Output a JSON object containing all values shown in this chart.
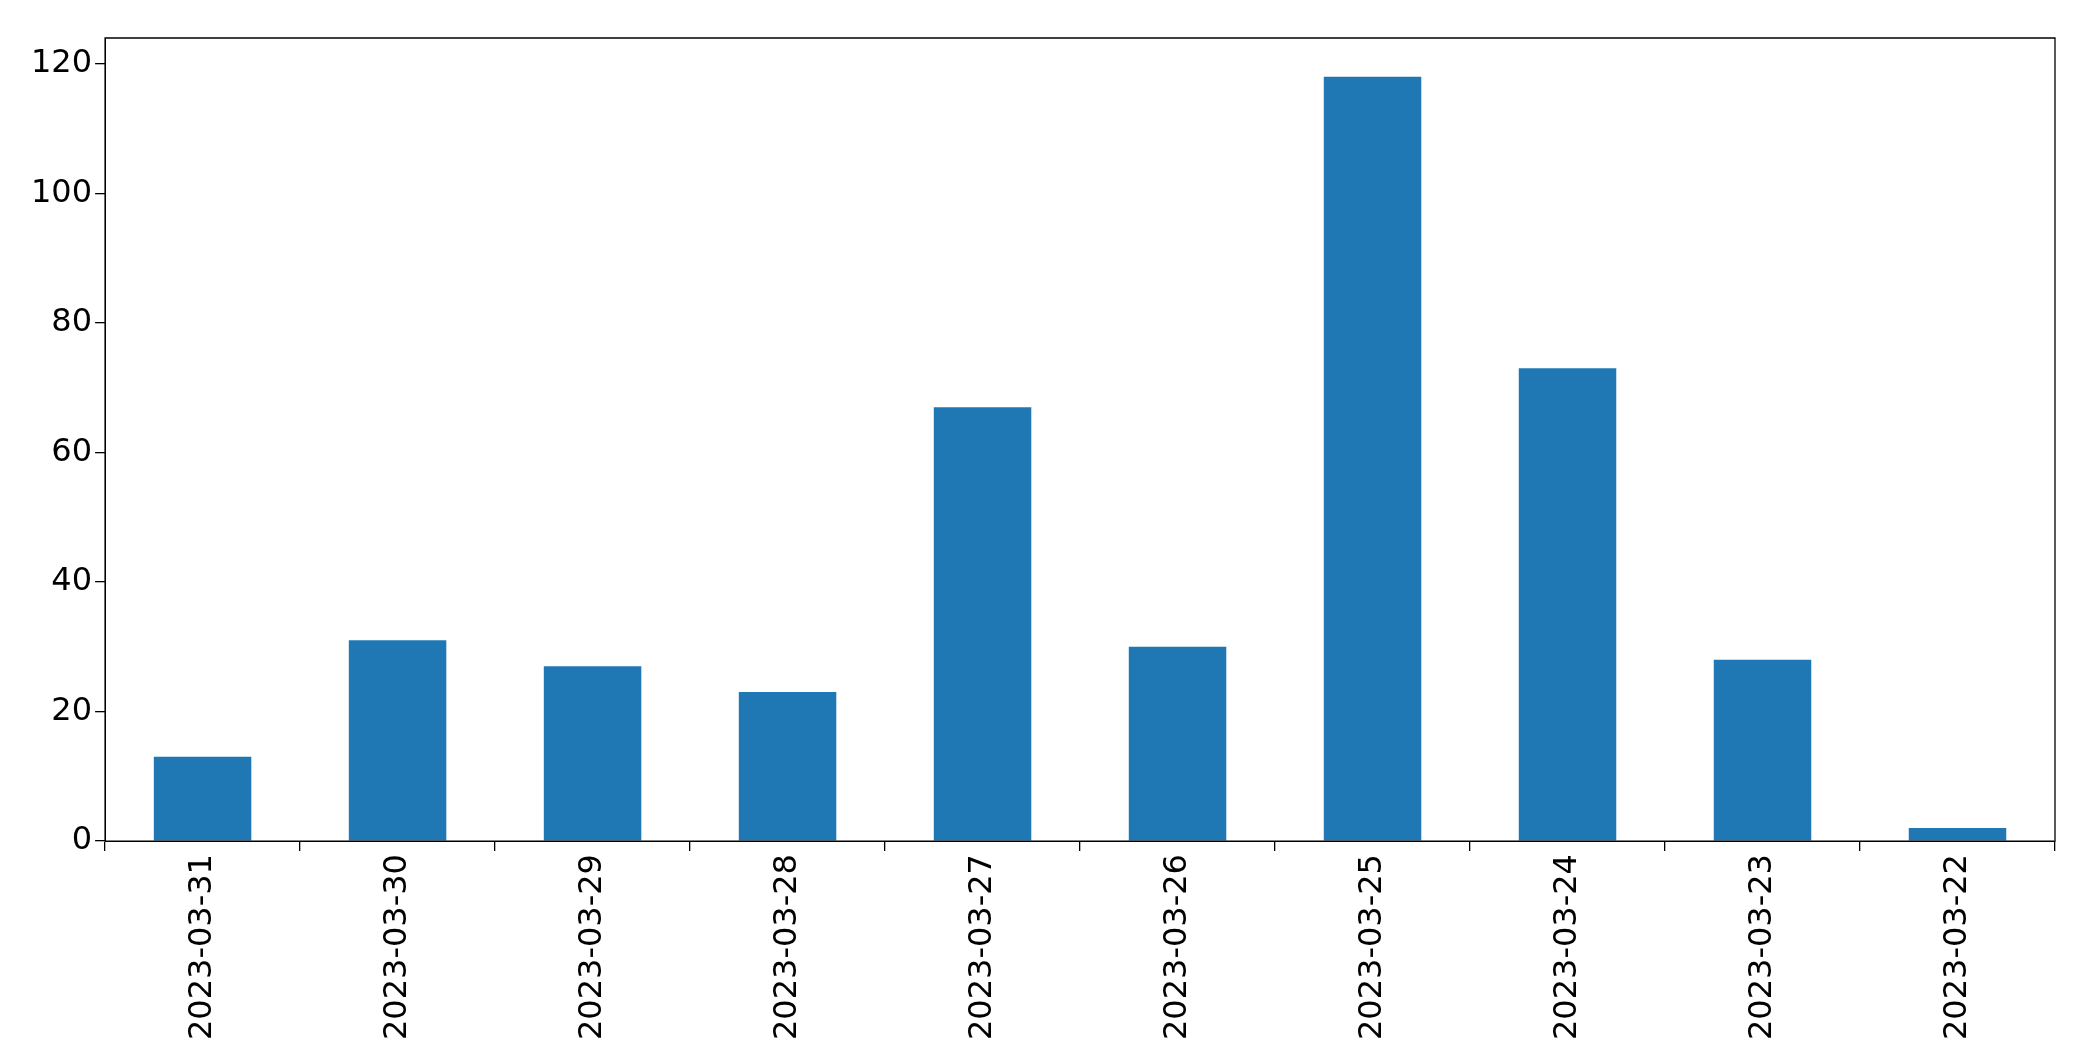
{
  "chart_data": {
    "type": "bar",
    "categories": [
      "2023-03-31",
      "2023-03-30",
      "2023-03-29",
      "2023-03-28",
      "2023-03-27",
      "2023-03-26",
      "2023-03-25",
      "2023-03-24",
      "2023-03-23",
      "2023-03-22"
    ],
    "values": [
      13,
      31,
      27,
      23,
      67,
      30,
      118,
      73,
      28,
      2
    ],
    "color": "#1f77b4",
    "ylim": [
      0,
      124
    ],
    "yticks": [
      0,
      20,
      40,
      60,
      80,
      100,
      120
    ],
    "grid": false,
    "legend": false
  }
}
